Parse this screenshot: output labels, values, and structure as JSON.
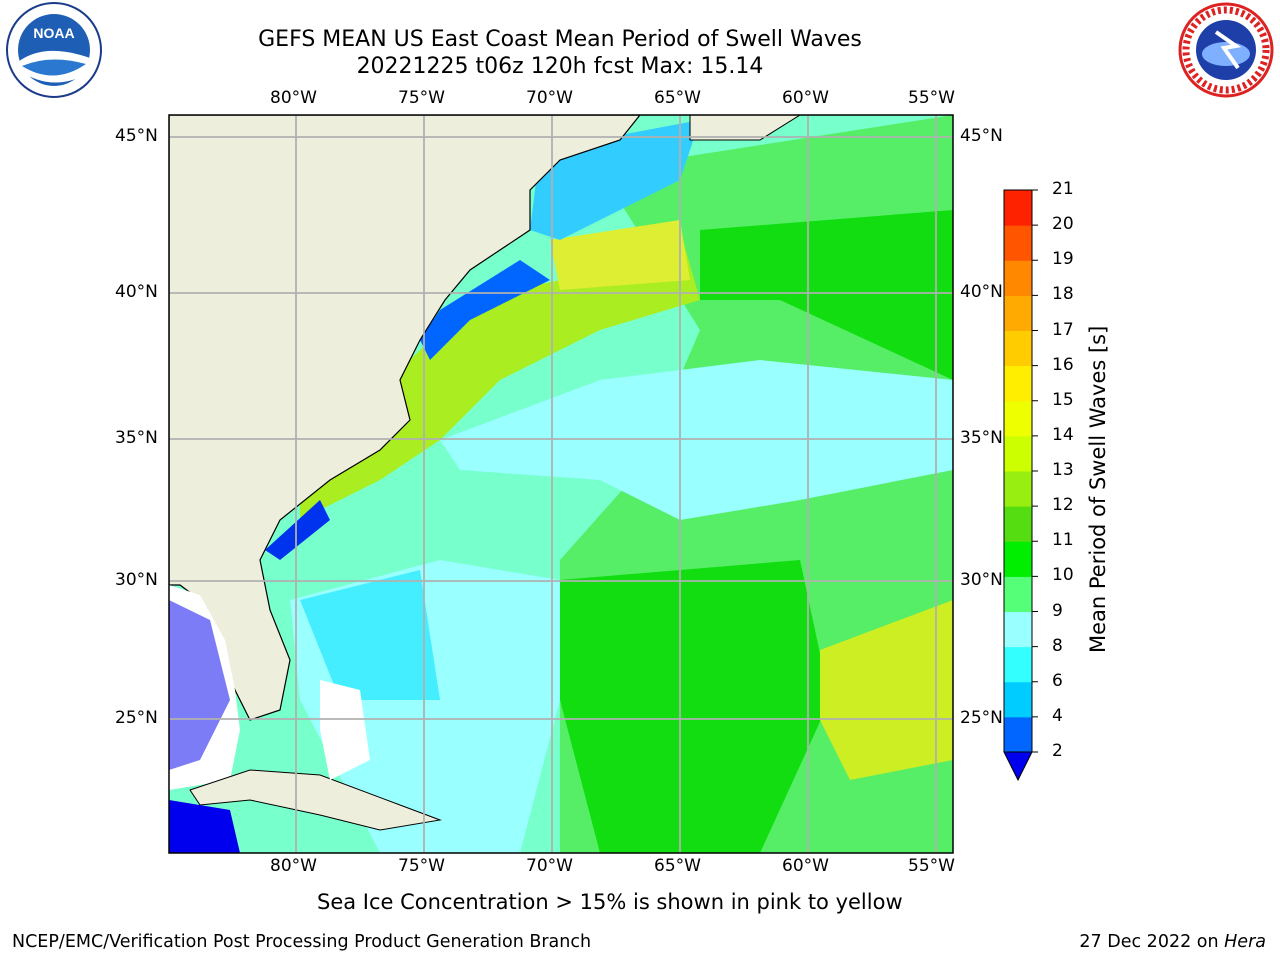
{
  "title": {
    "line1": "GEFS MEAN US East Coast Mean Period of Swell Waves",
    "line2": "20221225 t06z 120h fcst   Max: 15.14"
  },
  "logos": {
    "left": {
      "name": "NOAA",
      "text": "NOAA",
      "ring_text": "NATIONAL OCEANIC AND ATMOSPHERIC ADMINISTRATION · U.S. DEPARTMENT OF COMMERCE"
    },
    "right": {
      "name": "National Weather Service",
      "ring_text": "NATIONAL WEATHER SERVICE"
    }
  },
  "map": {
    "lon_labels": [
      "80°W",
      "75°W",
      "70°W",
      "65°W",
      "60°W",
      "55°W"
    ],
    "lat_labels": [
      "45°N",
      "40°N",
      "35°N",
      "30°N",
      "25°N"
    ],
    "lon_range": [
      -85,
      -54.3
    ],
    "lat_range": [
      20.3,
      46
    ]
  },
  "colorbar": {
    "label": "Mean Period of Swell Waves [s]",
    "ticks": [
      "2",
      "4",
      "6",
      "8",
      "9",
      "10",
      "11",
      "12",
      "13",
      "14",
      "15",
      "16",
      "17",
      "18",
      "19",
      "20",
      "21"
    ],
    "colors": [
      "#0066ff",
      "#00ccff",
      "#33ffff",
      "#99ffff",
      "#55ff77",
      "#00ee00",
      "#55dd11",
      "#99ee11",
      "#ccff00",
      "#eeff00",
      "#ffee00",
      "#ffcc00",
      "#ffaa00",
      "#ff8800",
      "#ff5500",
      "#ff2200"
    ],
    "under_color": "#0000ee"
  },
  "subtitle": "Sea Ice Concentration > 15% is shown in pink to yellow",
  "footer": {
    "left": "NCEP/EMC/Verification Post Processing Product Generation Branch",
    "right_prefix": "27 Dec 2022 on ",
    "right_host": "Hera"
  }
}
